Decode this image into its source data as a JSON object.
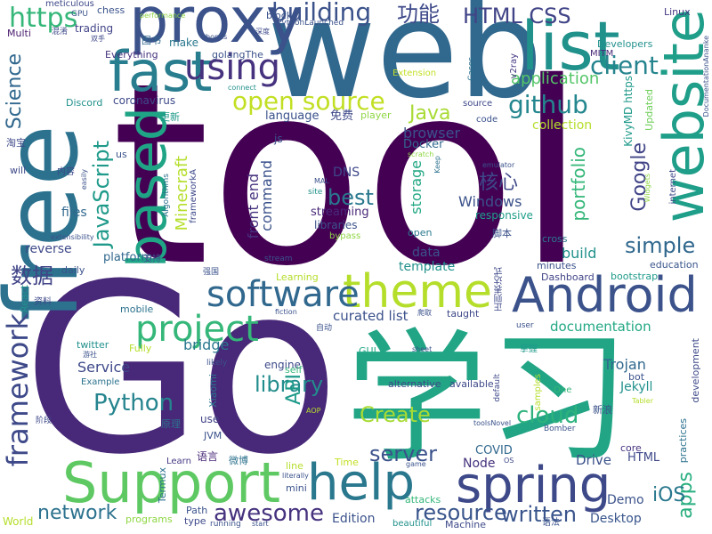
{
  "words": [
    {
      "id": "tool",
      "text": "tool",
      "color": "#440154"
    },
    {
      "id": "go",
      "text": "Go",
      "color": "#482878"
    },
    {
      "id": "xuexi",
      "text": "学习",
      "color": "#21a585"
    },
    {
      "id": "web",
      "text": "web",
      "color": "#31688e"
    },
    {
      "id": "free",
      "text": "free",
      "color": "#2c728e"
    },
    {
      "id": "proxy",
      "text": "proxy",
      "color": "#3b528b"
    },
    {
      "id": "list",
      "text": "list",
      "color": "#21918c"
    },
    {
      "id": "website",
      "text": "website",
      "color": "#1f9e89"
    },
    {
      "id": "fast",
      "text": "fast",
      "color": "#287d8e"
    },
    {
      "id": "based",
      "text": "based",
      "color": "#20a486"
    },
    {
      "id": "support",
      "text": "Support",
      "color": "#5ec962"
    },
    {
      "id": "spring",
      "text": "spring",
      "color": "#3e4989"
    },
    {
      "id": "android",
      "text": "Android",
      "color": "#3b528b"
    },
    {
      "id": "theme",
      "text": "theme",
      "color": "#b5de2b"
    },
    {
      "id": "help",
      "text": "help",
      "color": "#2a788e"
    },
    {
      "id": "software",
      "text": "software",
      "color": "#31688e"
    },
    {
      "id": "project",
      "text": "project",
      "color": "#35b779"
    },
    {
      "id": "framework",
      "text": "framework",
      "color": "#3e4989"
    },
    {
      "id": "using",
      "text": "using",
      "color": "#46327e"
    },
    {
      "id": "client",
      "text": "client",
      "color": "#25848e"
    },
    {
      "id": "github",
      "text": "github",
      "color": "#24868e"
    },
    {
      "id": "javascript",
      "text": "JavaScript",
      "color": "#1f9a8a"
    },
    {
      "id": "opensource",
      "text": "open source",
      "color": "#c2df23"
    },
    {
      "id": "building",
      "text": "building",
      "color": "#3b528b"
    },
    {
      "id": "https",
      "text": "https",
      "color": "#35b779"
    },
    {
      "id": "gongneng",
      "text": "功能",
      "color": "#3e4989"
    },
    {
      "id": "htmlcss",
      "text": "HTML CSS",
      "color": "#414487"
    },
    {
      "id": "application",
      "text": "application",
      "color": "#54c568"
    },
    {
      "id": "java",
      "text": "Java",
      "color": "#a8db34"
    },
    {
      "id": "science",
      "text": "Science",
      "color": "#31688e"
    },
    {
      "id": "python",
      "text": "Python",
      "color": "#25848e"
    },
    {
      "id": "awesome",
      "text": "awesome",
      "color": "#46327e"
    },
    {
      "id": "network",
      "text": "network",
      "color": "#2c728e"
    },
    {
      "id": "resource",
      "text": "resource",
      "color": "#39558c"
    },
    {
      "id": "written",
      "text": "written",
      "color": "#39558c"
    },
    {
      "id": "create",
      "text": "Create",
      "color": "#a8db34"
    },
    {
      "id": "cloud",
      "text": "cloud",
      "color": "#2db27d"
    },
    {
      "id": "server",
      "text": "server",
      "color": "#3b528b"
    },
    {
      "id": "library",
      "text": "library",
      "color": "#228c8d"
    },
    {
      "id": "apps",
      "text": "apps",
      "color": "#29af7f"
    },
    {
      "id": "ios",
      "text": "iOS",
      "color": "#2a788e"
    },
    {
      "id": "simple",
      "text": "simple",
      "color": "#31688e"
    },
    {
      "id": "google",
      "text": "Google",
      "color": "#414487"
    },
    {
      "id": "portfolio",
      "text": "portfolio",
      "color": "#35b779"
    },
    {
      "id": "minecraft",
      "text": "Minecraft",
      "color": "#b5de2b"
    },
    {
      "id": "best",
      "text": "best",
      "color": "#2a788e"
    },
    {
      "id": "hexin",
      "text": "核心",
      "color": "#3e4989"
    },
    {
      "id": "windows",
      "text": "Windows",
      "color": "#3b528b"
    },
    {
      "id": "browser",
      "text": "browser",
      "color": "#3b528b"
    },
    {
      "id": "api",
      "text": "API",
      "color": "#1f9a8a"
    },
    {
      "id": "documentation",
      "text": "documentation",
      "color": "#22a884"
    },
    {
      "id": "frontend",
      "text": "front end",
      "color": "#46327e"
    },
    {
      "id": "command",
      "text": "command",
      "color": "#3b528b"
    },
    {
      "id": "shuju",
      "text": "数据",
      "color": "#414487"
    },
    {
      "id": "template",
      "text": "template",
      "color": "#21918c"
    },
    {
      "id": "data",
      "text": "data",
      "color": "#3b528b"
    },
    {
      "id": "build",
      "text": "build",
      "color": "#21918c"
    },
    {
      "id": "storage",
      "text": "storage",
      "color": "#22a884"
    },
    {
      "id": "bridge",
      "text": "bridge",
      "color": "#2a788e"
    },
    {
      "id": "curatedlist",
      "text": "curated list",
      "color": "#3b528b"
    },
    {
      "id": "trojan",
      "text": "Trojan",
      "color": "#31688e"
    },
    {
      "id": "service",
      "text": "Service",
      "color": "#3e4989"
    },
    {
      "id": "edition",
      "text": "Edition",
      "color": "#3b528b"
    },
    {
      "id": "desktop",
      "text": "Desktop",
      "color": "#39558c"
    },
    {
      "id": "drive",
      "text": "Drive",
      "color": "#3b528b"
    },
    {
      "id": "demo",
      "text": "Demo",
      "color": "#3b528b"
    },
    {
      "id": "node",
      "text": "Node",
      "color": "#46327e"
    },
    {
      "id": "covid",
      "text": "COVID",
      "color": "#31688e"
    },
    {
      "id": "jekyll",
      "text": "Jekyll",
      "color": "#21918c"
    },
    {
      "id": "html",
      "text": "HTML",
      "color": "#3e4989"
    },
    {
      "id": "streaming",
      "text": "streaming",
      "color": "#482878"
    },
    {
      "id": "libraries",
      "text": "libraries",
      "color": "#3b528b"
    },
    {
      "id": "responsive",
      "text": "responsive",
      "color": "#1f9e89"
    },
    {
      "id": "dns",
      "text": "DNS",
      "color": "#3e4989"
    },
    {
      "id": "docker",
      "text": "Docker",
      "color": "#31688e"
    },
    {
      "id": "collection",
      "text": "collection",
      "color": "#b5de2b"
    },
    {
      "id": "files",
      "text": "files",
      "color": "#31688e"
    },
    {
      "id": "reverse",
      "text": "reverse",
      "color": "#3e4989"
    },
    {
      "id": "platform",
      "text": "platform",
      "color": "#31688e"
    },
    {
      "id": "language",
      "text": "language",
      "color": "#3b528b"
    },
    {
      "id": "mianfei",
      "text": "免费",
      "color": "#3e4989"
    },
    {
      "id": "player",
      "text": "player",
      "color": "#8fd744"
    },
    {
      "id": "coronavirus",
      "text": "coronavirus",
      "color": "#3e4989"
    },
    {
      "id": "trading",
      "text": "trading",
      "color": "#414487"
    },
    {
      "id": "make",
      "text": "make",
      "color": "#2a788e"
    },
    {
      "id": "everything",
      "text": "Everything",
      "color": "#46327e"
    },
    {
      "id": "golangthe",
      "text": "golangThe",
      "color": "#3b528b"
    },
    {
      "id": "developers",
      "text": "Developers",
      "color": "#21918c"
    },
    {
      "id": "mitm",
      "text": "MITM",
      "color": "#482878"
    },
    {
      "id": "linux",
      "text": "Linux",
      "color": "#443983"
    },
    {
      "id": "chess",
      "text": "chess",
      "color": "#3b528b"
    },
    {
      "id": "block",
      "text": "block",
      "color": "#3b528b"
    },
    {
      "id": "multi",
      "text": "Multi",
      "color": "#481b6d"
    },
    {
      "id": "discord",
      "text": "Discord",
      "color": "#21918c"
    },
    {
      "id": "kivymd",
      "text": "KivyMD https",
      "color": "#1f9a8a"
    },
    {
      "id": "updated",
      "text": "Updated",
      "color": "#6ece58"
    },
    {
      "id": "learning",
      "text": "Learning",
      "color": "#b5de2b"
    },
    {
      "id": "mobile",
      "text": "mobile",
      "color": "#2c728e"
    },
    {
      "id": "twitter",
      "text": "twitter",
      "color": "#21918c"
    },
    {
      "id": "example",
      "text": "Example",
      "color": "#2c728e"
    },
    {
      "id": "engine",
      "text": "engine",
      "color": "#3e4989"
    },
    {
      "id": "taught",
      "text": "taught",
      "color": "#3e4989"
    },
    {
      "id": "xinlang",
      "text": "新浪",
      "color": "#3b528b"
    },
    {
      "id": "bot",
      "text": "bot",
      "color": "#3b528b"
    },
    {
      "id": "core",
      "text": "core",
      "color": "#46327e"
    },
    {
      "id": "education",
      "text": "education",
      "color": "#39558c"
    },
    {
      "id": "bootstrap",
      "text": "bootstrap",
      "color": "#1f9a8a"
    },
    {
      "id": "dashboard",
      "text": "Dashboard",
      "color": "#414487"
    },
    {
      "id": "minutes",
      "text": "minutes",
      "color": "#3b528b"
    },
    {
      "id": "cross",
      "text": "cross",
      "color": "#2a788e"
    },
    {
      "id": "jiaoben",
      "text": "脚本",
      "color": "#3b528b"
    },
    {
      "id": "open",
      "text": "open",
      "color": "#2a788e"
    },
    {
      "id": "alternative",
      "text": "alternative",
      "color": "#3e4989"
    },
    {
      "id": "available",
      "text": "available",
      "color": "#3e4989"
    },
    {
      "id": "gui",
      "text": "GUI",
      "color": "#22a884"
    },
    {
      "id": "use",
      "text": "use",
      "color": "#414487"
    },
    {
      "id": "jvm",
      "text": "JVM",
      "color": "#3b528b"
    },
    {
      "id": "weibo",
      "text": "微博",
      "color": "#2c728e"
    },
    {
      "id": "yuyan",
      "text": "语言",
      "color": "#482878"
    },
    {
      "id": "yuanli",
      "text": "原理",
      "color": "#2c728e"
    },
    {
      "id": "learn",
      "text": "Learn",
      "color": "#443983"
    },
    {
      "id": "mini",
      "text": "mini",
      "color": "#3b528b"
    },
    {
      "id": "line",
      "text": "line",
      "color": "#b5de2b"
    },
    {
      "id": "time",
      "text": "Time",
      "color": "#c2df23"
    },
    {
      "id": "attacks",
      "text": "attacks",
      "color": "#35b779"
    },
    {
      "id": "machine",
      "text": "Machine",
      "color": "#3e4989"
    },
    {
      "id": "beautiful",
      "text": "beautiful",
      "color": "#21918c"
    },
    {
      "id": "yufa",
      "text": "语法",
      "color": "#3b528b"
    },
    {
      "id": "world",
      "text": "World",
      "color": "#b5de2b"
    },
    {
      "id": "programs",
      "text": "programs",
      "color": "#8fd744"
    },
    {
      "id": "path",
      "text": "Path",
      "color": "#3b528b"
    },
    {
      "id": "type",
      "text": "type",
      "color": "#3e4989"
    },
    {
      "id": "running",
      "text": "running",
      "color": "#3b528b"
    },
    {
      "id": "start",
      "text": "start",
      "color": "#3b528b"
    },
    {
      "id": "termux",
      "text": "Termux",
      "color": "#2c728e"
    },
    {
      "id": "xiaomi",
      "text": "Xiaomi",
      "color": "#2a788e"
    },
    {
      "id": "fully",
      "text": "Fully",
      "color": "#b5de2b"
    },
    {
      "id": "likely",
      "text": "likely",
      "color": "#3b528b"
    },
    {
      "id": "self",
      "text": "self",
      "color": "#35b779"
    },
    {
      "id": "react",
      "text": "React",
      "color": "#21918c"
    },
    {
      "id": "ziliao",
      "text": "资料",
      "color": "#3e4989"
    },
    {
      "id": "daily",
      "text": "daily",
      "color": "#3b528b"
    },
    {
      "id": "extensibility",
      "text": "extensibility",
      "color": "#3b528b"
    },
    {
      "id": "taobao",
      "text": "淘宝",
      "color": "#3e4989"
    },
    {
      "id": "will",
      "text": "will",
      "color": "#3e4989"
    },
    {
      "id": "neirong",
      "text": "内容",
      "color": "#3e4989"
    },
    {
      "id": "easily",
      "text": "easily",
      "color": "#3b528b"
    },
    {
      "id": "algorithms",
      "text": "Algorithms",
      "color": "#2c728e"
    },
    {
      "id": "frameworka",
      "text": "frameworkA",
      "color": "#3e4989"
    },
    {
      "id": "js",
      "text": "js",
      "color": "#3b528b"
    },
    {
      "id": "gengxin",
      "text": "更新",
      "color": "#1f9a8a"
    },
    {
      "id": "us",
      "text": "us",
      "color": "#3b528b"
    },
    {
      "id": "tushu",
      "text": "图书",
      "color": "#31688e"
    },
    {
      "id": "shuangshou",
      "text": "双手",
      "color": "#3e4989"
    },
    {
      "id": "hunxiao",
      "text": "混淆",
      "color": "#3e4989"
    },
    {
      "id": "gpu",
      "text": "GPU",
      "color": "#3b528b"
    },
    {
      "id": "meticulous",
      "text": "meticulous",
      "color": "#3e4989"
    },
    {
      "id": "performance",
      "text": "performance",
      "color": "#8fd744"
    },
    {
      "id": "bonus",
      "text": "bonus",
      "color": "#3b528b"
    },
    {
      "id": "shendu",
      "text": "深度",
      "color": "#3e4989"
    },
    {
      "id": "pythonlaunched",
      "text": "PythonLaunched",
      "color": "#3b528b"
    },
    {
      "id": "extension",
      "text": "Extension",
      "color": "#c2df23"
    },
    {
      "id": "connect",
      "text": "connect",
      "color": "#21918c"
    },
    {
      "id": "cases",
      "text": "Cases",
      "color": "#2c728e"
    },
    {
      "id": "v2ray",
      "text": "v2ray",
      "color": "#443983"
    },
    {
      "id": "documentationanke",
      "text": "DocumentationAnanke",
      "color": "#3b528b"
    },
    {
      "id": "source",
      "text": "source",
      "color": "#3e4989"
    },
    {
      "id": "code",
      "text": "code",
      "color": "#3b528b"
    },
    {
      "id": "scratch",
      "text": "scratch",
      "color": "#8fd744"
    },
    {
      "id": "keep",
      "text": "Keep",
      "color": "#2c728e"
    },
    {
      "id": "emulator",
      "text": "emulator",
      "color": "#3b528b"
    },
    {
      "id": "widgets",
      "text": "Widgets",
      "color": "#8fd744"
    },
    {
      "id": "internet",
      "text": "internet",
      "color": "#3e4989"
    },
    {
      "id": "mal",
      "text": "MAL",
      "color": "#3b528b"
    },
    {
      "id": "site",
      "text": "site",
      "color": "#21918c"
    },
    {
      "id": "bypass",
      "text": "bypass",
      "color": "#8fd744"
    },
    {
      "id": "zhichi",
      "text": "支持",
      "color": "#3b528b"
    },
    {
      "id": "qiangguo",
      "text": "强国",
      "color": "#3b528b"
    },
    {
      "id": "stream",
      "text": "stream",
      "color": "#3b528b"
    },
    {
      "id": "fiction",
      "text": "fiction",
      "color": "#3b528b"
    },
    {
      "id": "zidong",
      "text": "自动",
      "color": "#3b528b"
    },
    {
      "id": "paqu",
      "text": "爬取",
      "color": "#3b528b"
    },
    {
      "id": "zhengze",
      "text": "正则表达式",
      "color": "#3e4989"
    },
    {
      "id": "user",
      "text": "user",
      "color": "#3b528b"
    },
    {
      "id": "sheet",
      "text": "sheet",
      "color": "#3b528b"
    },
    {
      "id": "zhangwo",
      "text": "掌握",
      "color": "#1f9a8a"
    },
    {
      "id": "youshe",
      "text": "游社",
      "color": "#3b528b"
    },
    {
      "id": "aop",
      "text": "AOP",
      "color": "#b5de2b"
    },
    {
      "id": "default",
      "text": "default",
      "color": "#3e4989"
    },
    {
      "id": "samples",
      "text": "samples",
      "color": "#b5de2b"
    },
    {
      "id": "one",
      "text": "One",
      "color": "#35b779"
    },
    {
      "id": "tabler",
      "text": "Tabler",
      "color": "#b5de2b"
    },
    {
      "id": "bomber",
      "text": "Bomber",
      "color": "#3b528b"
    },
    {
      "id": "toolsnovel",
      "text": "toolsNovel",
      "color": "#3b528b"
    },
    {
      "id": "os",
      "text": "OS",
      "color": "#3e4989"
    },
    {
      "id": "game",
      "text": "game",
      "color": "#3b528b"
    },
    {
      "id": "literally",
      "text": "literally",
      "color": "#3b528b"
    },
    {
      "id": "jieduan",
      "text": "阶段",
      "color": "#3e4989"
    },
    {
      "id": "development",
      "text": "development",
      "color": "#3e4989"
    },
    {
      "id": "practices",
      "text": "practices",
      "color": "#2c728e"
    }
  ]
}
